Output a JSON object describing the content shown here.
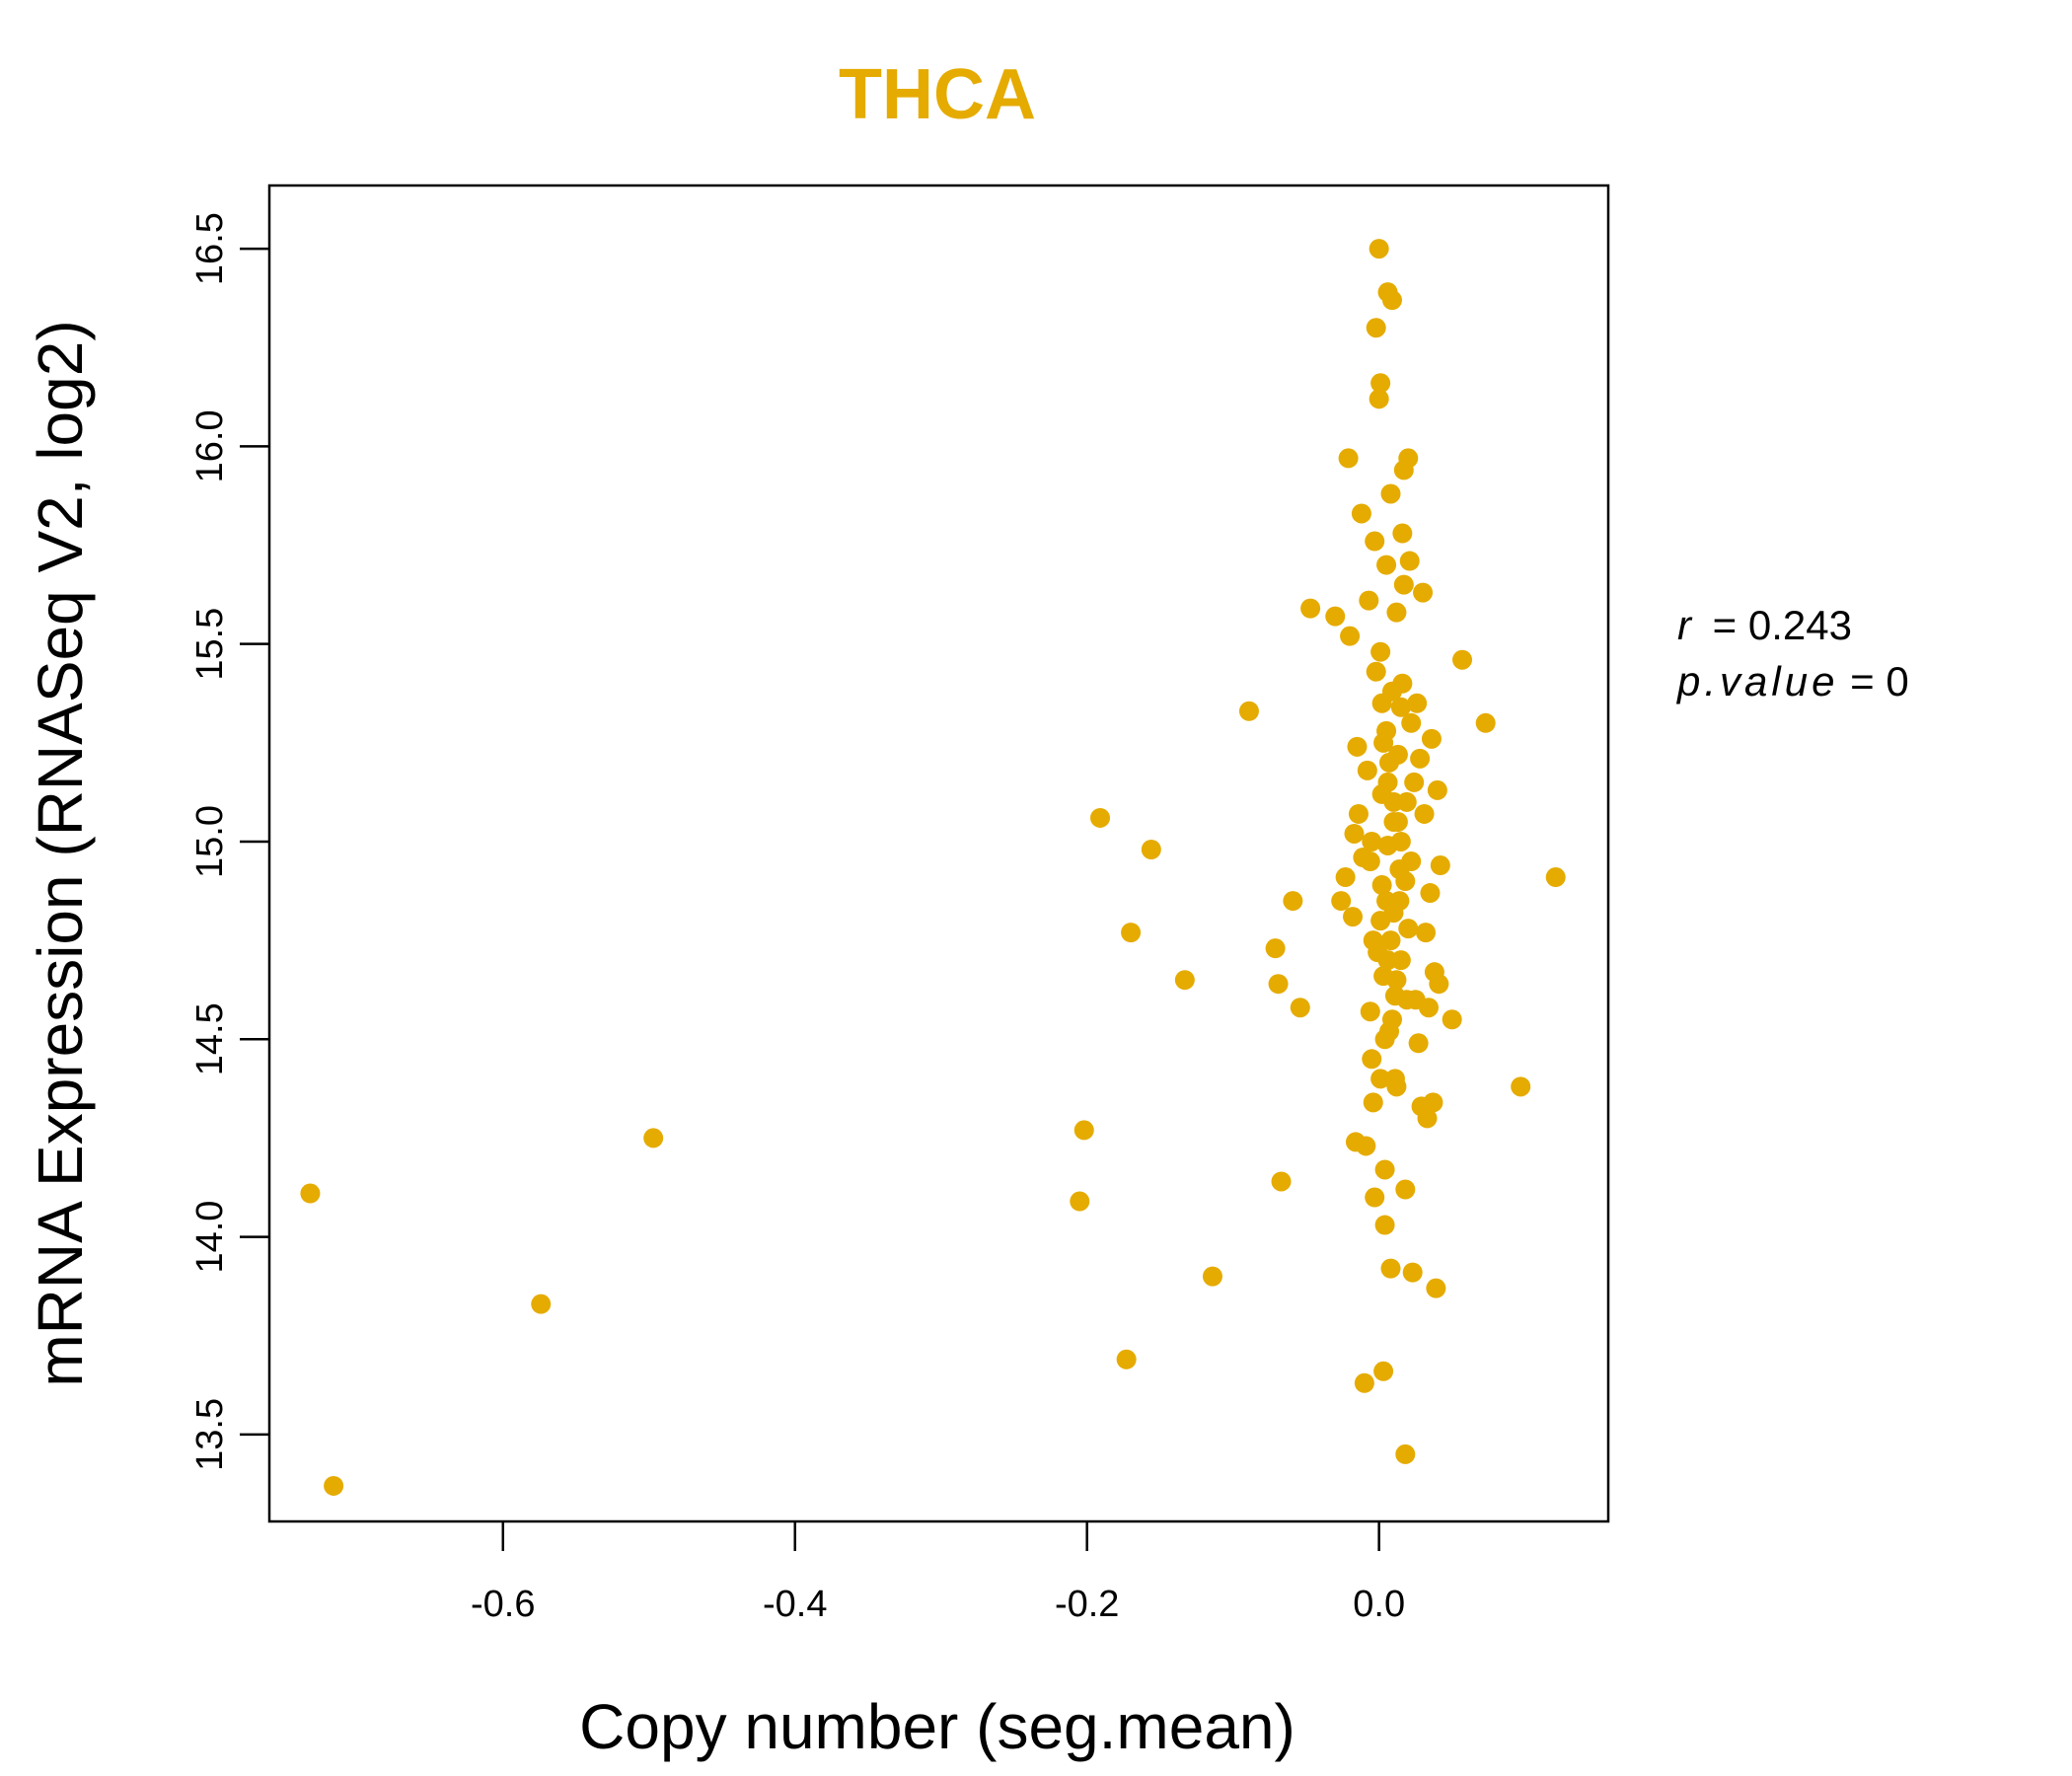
{
  "chart_data": {
    "type": "scatter",
    "title": "THCA",
    "xlabel": "Copy number (seg.mean)",
    "ylabel": "mRNA Expression (RNASeq V2, log2)",
    "xlim": [
      -0.76,
      0.157
    ],
    "ylim": [
      13.28,
      16.66
    ],
    "x_ticks": [
      "-0.6",
      "-0.4",
      "-0.2",
      "0.0"
    ],
    "y_ticks": [
      "13.5",
      "14.0",
      "14.5",
      "15.0",
      "15.5",
      "16.0",
      "16.5"
    ],
    "grid": false,
    "color": "#E5AB00",
    "annotation": {
      "r_label": "r",
      "r_value": "0.243",
      "p_label": "p.value",
      "p_value": "0"
    },
    "points": [
      [
        -0.732,
        14.11
      ],
      [
        -0.716,
        13.37
      ],
      [
        -0.574,
        13.83
      ],
      [
        -0.497,
        14.25
      ],
      [
        -0.205,
        14.09
      ],
      [
        -0.202,
        14.27
      ],
      [
        -0.191,
        15.06
      ],
      [
        -0.173,
        13.69
      ],
      [
        -0.17,
        14.77
      ],
      [
        -0.156,
        14.98
      ],
      [
        -0.133,
        14.65
      ],
      [
        -0.114,
        13.9
      ],
      [
        -0.089,
        15.33
      ],
      [
        -0.071,
        14.73
      ],
      [
        -0.069,
        14.64
      ],
      [
        -0.067,
        14.14
      ],
      [
        -0.059,
        14.85
      ],
      [
        -0.054,
        14.58
      ],
      [
        -0.047,
        15.59
      ],
      [
        -0.03,
        15.57
      ],
      [
        -0.026,
        14.85
      ],
      [
        -0.023,
        14.91
      ],
      [
        -0.021,
        15.97
      ],
      [
        -0.02,
        15.52
      ],
      [
        -0.018,
        14.81
      ],
      [
        -0.017,
        15.02
      ],
      [
        -0.016,
        14.24
      ],
      [
        -0.015,
        15.24
      ],
      [
        -0.014,
        15.07
      ],
      [
        -0.012,
        15.83
      ],
      [
        -0.011,
        14.96
      ],
      [
        -0.01,
        13.63
      ],
      [
        -0.009,
        14.23
      ],
      [
        -0.008,
        15.18
      ],
      [
        -0.007,
        15.61
      ],
      [
        -0.006,
        14.57
      ],
      [
        -0.005,
        14.45
      ],
      [
        -0.004,
        14.34
      ],
      [
        -0.003,
        15.76
      ],
      [
        -0.002,
        16.3
      ],
      [
        -0.002,
        15.43
      ],
      [
        -0.001,
        14.72
      ],
      [
        0.0,
        16.5
      ],
      [
        0.0,
        16.12
      ],
      [
        0.001,
        16.16
      ],
      [
        0.001,
        15.48
      ],
      [
        0.002,
        15.12
      ],
      [
        0.002,
        14.89
      ],
      [
        0.003,
        14.66
      ],
      [
        0.003,
        13.66
      ],
      [
        0.004,
        14.17
      ],
      [
        0.004,
        14.03
      ],
      [
        0.005,
        15.7
      ],
      [
        0.005,
        15.28
      ],
      [
        0.006,
        16.39
      ],
      [
        0.006,
        14.99
      ],
      [
        0.007,
        14.52
      ],
      [
        0.008,
        13.92
      ],
      [
        0.008,
        15.88
      ],
      [
        0.009,
        16.37
      ],
      [
        0.009,
        15.38
      ],
      [
        0.01,
        15.05
      ],
      [
        0.01,
        14.82
      ],
      [
        0.011,
        14.61
      ],
      [
        0.012,
        15.58
      ],
      [
        0.012,
        14.38
      ],
      [
        0.013,
        15.22
      ],
      [
        0.014,
        14.93
      ],
      [
        0.015,
        15.34
      ],
      [
        0.015,
        14.7
      ],
      [
        0.016,
        15.78
      ],
      [
        0.017,
        15.94
      ],
      [
        0.017,
        15.65
      ],
      [
        0.018,
        14.12
      ],
      [
        0.018,
        13.45
      ],
      [
        0.019,
        15.1
      ],
      [
        0.02,
        15.97
      ],
      [
        0.02,
        14.78
      ],
      [
        0.021,
        15.71
      ],
      [
        0.022,
        15.3
      ],
      [
        0.022,
        14.95
      ],
      [
        0.023,
        13.91
      ],
      [
        0.024,
        15.15
      ],
      [
        0.025,
        14.6
      ],
      [
        0.026,
        15.35
      ],
      [
        0.027,
        14.49
      ],
      [
        0.028,
        15.21
      ],
      [
        0.029,
        14.33
      ],
      [
        0.03,
        15.63
      ],
      [
        0.031,
        15.07
      ],
      [
        0.032,
        14.77
      ],
      [
        0.033,
        14.3
      ],
      [
        0.034,
        14.58
      ],
      [
        0.035,
        14.87
      ],
      [
        0.036,
        15.26
      ],
      [
        0.037,
        14.34
      ],
      [
        0.038,
        14.67
      ],
      [
        0.039,
        13.87
      ],
      [
        0.04,
        15.13
      ],
      [
        0.041,
        14.64
      ],
      [
        0.042,
        14.94
      ],
      [
        0.05,
        14.55
      ],
      [
        0.057,
        15.46
      ],
      [
        0.073,
        15.3
      ],
      [
        0.097,
        14.38
      ],
      [
        0.121,
        14.91
      ],
      [
        -0.003,
        14.1
      ],
      [
        0.001,
        14.4
      ],
      [
        0.004,
        14.5
      ],
      [
        -0.004,
        14.75
      ],
      [
        0.006,
        14.7
      ],
      [
        0.011,
        14.4
      ],
      [
        -0.005,
        15.0
      ],
      [
        0.009,
        14.55
      ],
      [
        0.014,
        14.85
      ],
      [
        0.002,
        15.35
      ],
      [
        0.016,
        15.4
      ],
      [
        0.019,
        14.6
      ],
      [
        0.013,
        15.05
      ],
      [
        -0.006,
        14.95
      ],
      [
        0.007,
        15.2
      ],
      [
        0.01,
        15.1
      ],
      [
        0.005,
        14.85
      ],
      [
        0.012,
        14.65
      ],
      [
        0.003,
        15.25
      ],
      [
        0.015,
        15.0
      ],
      [
        0.008,
        14.75
      ],
      [
        0.001,
        14.8
      ],
      [
        0.018,
        14.9
      ],
      [
        0.006,
        15.15
      ]
    ]
  }
}
